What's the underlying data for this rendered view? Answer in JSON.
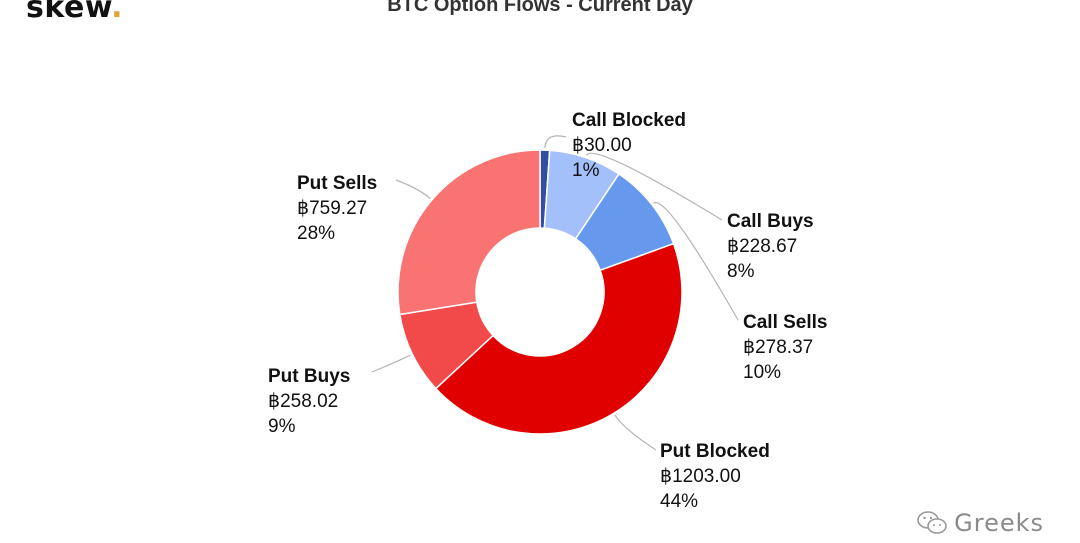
{
  "brand": {
    "name": "skew",
    "dot": "."
  },
  "watermark": {
    "text": "Greeks"
  },
  "chart_data": {
    "type": "pie",
    "title": "BTC Option Flows - Current Day",
    "donut": true,
    "slices": [
      {
        "name": "Call Blocked",
        "value": 30.0,
        "value_label": "฿30.00",
        "percent_label": "1%",
        "color": "#2f4ea0"
      },
      {
        "name": "Call Buys",
        "value": 228.67,
        "value_label": "฿228.67",
        "percent_label": "8%",
        "color": "#a3c0fb"
      },
      {
        "name": "Call Sells",
        "value": 278.37,
        "value_label": "฿278.37",
        "percent_label": "10%",
        "color": "#6699ee"
      },
      {
        "name": "Put Blocked",
        "value": 1203.0,
        "value_label": "฿1203.00",
        "percent_label": "44%",
        "color": "#e00000"
      },
      {
        "name": "Put Buys",
        "value": 258.02,
        "value_label": "฿258.02",
        "percent_label": "9%",
        "color": "#f24a4a"
      },
      {
        "name": "Put Sells",
        "value": 759.27,
        "value_label": "฿759.27",
        "percent_label": "28%",
        "color": "#fa7373"
      }
    ]
  }
}
